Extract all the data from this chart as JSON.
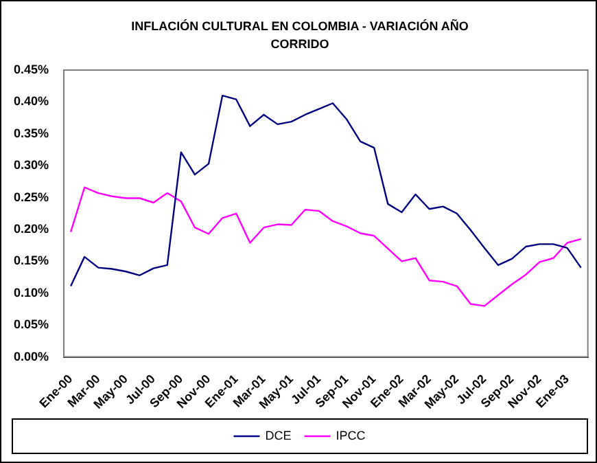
{
  "chart_data": {
    "type": "line",
    "title": "INFLACIÓN CULTURAL EN COLOMBIA - VARIACIÓN AÑO CORRIDO",
    "categories": [
      "Ene-00",
      null,
      "Mar-00",
      null,
      "May-00",
      null,
      "Jul-00",
      null,
      "Sep-00",
      null,
      "Nov-00",
      null,
      "Ene-01",
      null,
      "Mar-01",
      null,
      "May-01",
      null,
      "Jul-01",
      null,
      "Sep-01",
      null,
      "Nov-01",
      null,
      "Ene-02",
      null,
      "Mar-02",
      null,
      "May-02",
      null,
      "Jul-02",
      null,
      "Sep-02",
      null,
      "Nov-02",
      null,
      "Ene-03",
      null
    ],
    "series": [
      {
        "name": "DCE",
        "color": "#000080",
        "values": [
          0.111,
          0.157,
          0.14,
          0.138,
          0.134,
          0.128,
          0.139,
          0.144,
          0.321,
          0.286,
          0.303,
          0.41,
          0.404,
          0.362,
          0.38,
          0.365,
          0.369,
          0.38,
          0.389,
          0.398,
          0.373,
          0.338,
          0.328,
          0.24,
          0.227,
          0.255,
          0.232,
          0.236,
          0.225,
          0.199,
          0.171,
          0.144,
          0.154,
          0.173,
          0.177,
          0.177,
          0.171,
          0.14
        ]
      },
      {
        "name": "IPCC",
        "color": "#ff00ff",
        "values": [
          0.196,
          0.266,
          0.257,
          0.252,
          0.249,
          0.249,
          0.242,
          0.257,
          0.244,
          0.203,
          0.193,
          0.218,
          0.225,
          0.179,
          0.203,
          0.208,
          0.207,
          0.231,
          0.229,
          0.213,
          0.205,
          0.194,
          0.19,
          0.17,
          0.15,
          0.155,
          0.12,
          0.118,
          0.111,
          0.083,
          0.08,
          0.097,
          0.114,
          0.129,
          0.149,
          0.155,
          0.179,
          0.185
        ]
      }
    ],
    "ylim": [
      0,
      0.45
    ],
    "yticks": [
      {
        "value": 0,
        "label": "0.00%"
      },
      {
        "value": 0.05,
        "label": "0.05%"
      },
      {
        "value": 0.1,
        "label": "0.10%"
      },
      {
        "value": 0.15,
        "label": "0.15%"
      },
      {
        "value": 0.2,
        "label": "0.20%"
      },
      {
        "value": 0.25,
        "label": "0.25%"
      },
      {
        "value": 0.3,
        "label": "0.30%"
      },
      {
        "value": 0.35,
        "label": "0.35%"
      },
      {
        "value": 0.4,
        "label": "0.40%"
      },
      {
        "value": 0.45,
        "label": "0.45%"
      }
    ],
    "legend": "bottom",
    "marker": "none",
    "line_style": "solid"
  }
}
